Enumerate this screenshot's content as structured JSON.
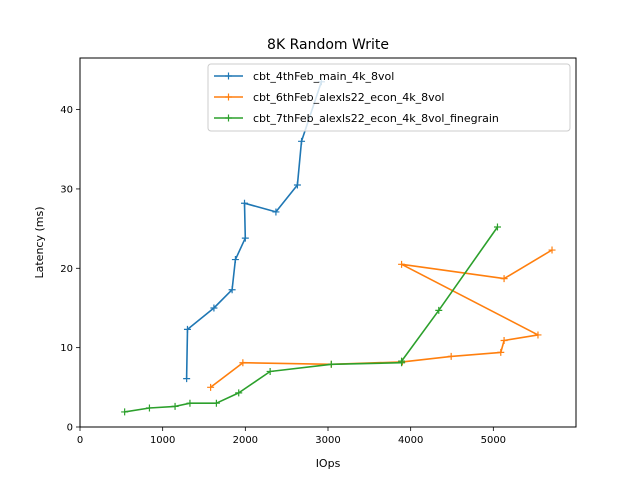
{
  "chart_data": {
    "type": "line",
    "title": "8K  Random Write",
    "xlabel": "IOps",
    "ylabel": "Latency (ms)",
    "xlim": [
      0,
      6000
    ],
    "ylim": [
      0,
      46.5
    ],
    "xticks": [
      0,
      1000,
      2000,
      3000,
      4000,
      5000
    ],
    "yticks": [
      0,
      10,
      20,
      30,
      40
    ],
    "xtick_labels": [
      "0",
      "1000",
      "2000",
      "3000",
      "4000",
      "5000"
    ],
    "ytick_labels": [
      "0",
      "10",
      "20",
      "30",
      "40"
    ],
    "grid": false,
    "legend_position": "top-right",
    "marker": "+",
    "series": [
      {
        "name": "cbt_4thFeb_main_4k_8vol",
        "color": "#1f77b4",
        "x": [
          1290,
          1300,
          1620,
          1840,
          1880,
          2000,
          1990,
          2370,
          2630,
          2680,
          2920
        ],
        "y": [
          6.1,
          12.3,
          15.0,
          17.3,
          21.1,
          23.8,
          28.2,
          27.1,
          30.5,
          36.0,
          43.5
        ]
      },
      {
        "name": "cbt_6thFeb_alexls22_econ_4k_8vol",
        "color": "#ff7f0e",
        "x": [
          1580,
          1970,
          3040,
          3900,
          4490,
          5090,
          5130,
          5540,
          3890,
          5130,
          5710
        ],
        "y": [
          5.0,
          8.1,
          7.9,
          8.2,
          8.9,
          9.4,
          10.9,
          11.6,
          20.5,
          18.7,
          22.3
        ]
      },
      {
        "name": "cbt_7thFeb_alexls22_econ_4k_8vol_finegrain",
        "color": "#2ca02c",
        "x": [
          540,
          840,
          1150,
          1330,
          1650,
          1920,
          2300,
          3040,
          3890,
          3890,
          4340,
          5050
        ],
        "y": [
          1.9,
          2.4,
          2.6,
          3.0,
          3.0,
          4.3,
          7.0,
          7.9,
          8.1,
          8.3,
          14.7,
          25.2
        ]
      }
    ]
  }
}
